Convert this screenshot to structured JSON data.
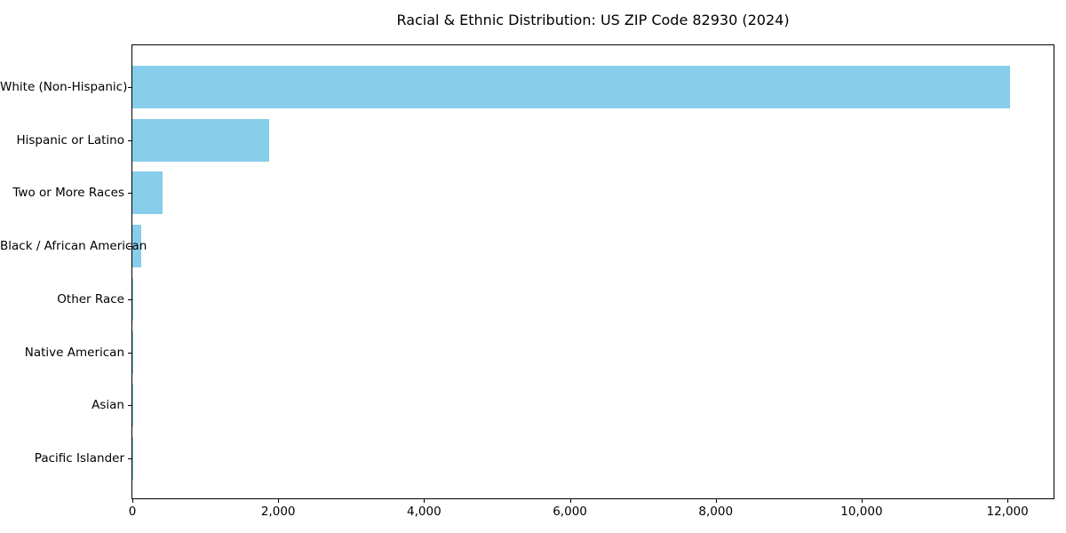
{
  "colors": {
    "bar": "#87CEEB",
    "axis": "#000000",
    "text": "#000000",
    "background": "#FFFFFF"
  },
  "chart_data": {
    "type": "bar",
    "orientation": "horizontal",
    "title": "Racial & Ethnic Distribution: US ZIP Code 82930 (2024)",
    "xlabel": "",
    "ylabel": "",
    "categories": [
      "White (Non-Hispanic)",
      "Hispanic or Latino",
      "Two or More Races",
      "Black / African American",
      "Other Race",
      "Native American",
      "Asian",
      "Pacific Islander"
    ],
    "values": [
      12030,
      1870,
      410,
      120,
      15,
      10,
      5,
      2
    ],
    "xlim": [
      0,
      12632
    ],
    "xticks": [
      0,
      2000,
      4000,
      6000,
      8000,
      10000,
      12000
    ],
    "xtick_labels": [
      "0",
      "2,000",
      "4,000",
      "6,000",
      "8,000",
      "10,000",
      "12,000"
    ],
    "grid": false,
    "legend": "none",
    "bar_color_name": "skyblue"
  }
}
